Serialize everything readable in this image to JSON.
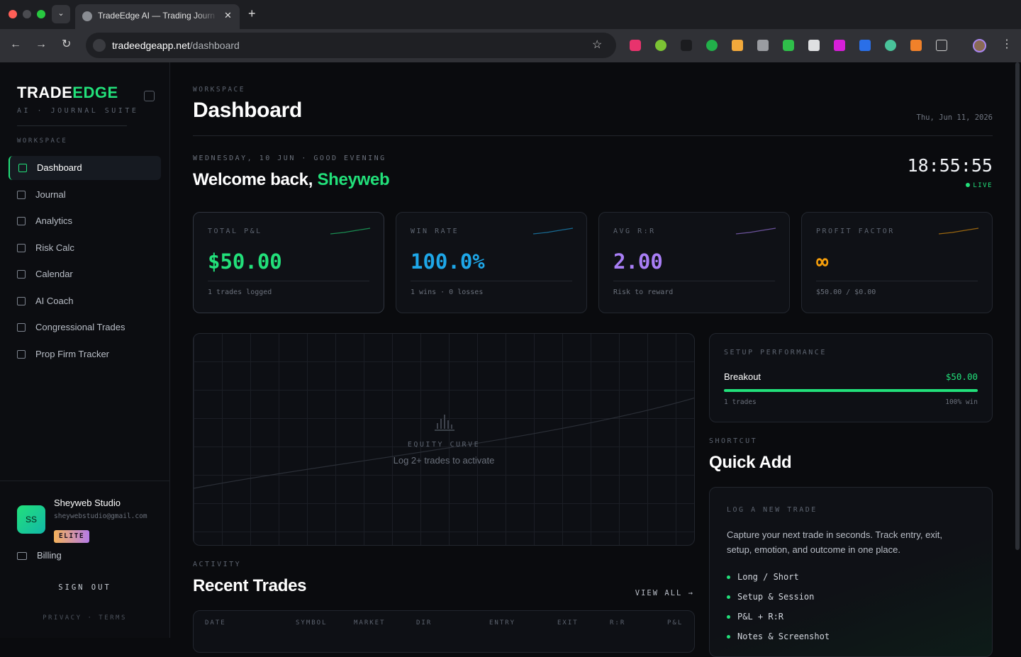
{
  "browser": {
    "tab_title": "TradeEdge AI — Trading Journ",
    "url_host": "tradeedgeapp.net",
    "url_path": "/dashboard"
  },
  "sidebar": {
    "brand_a": "TRADE",
    "brand_b": "EDGE",
    "tagline": "AI · JOURNAL SUITE",
    "section": "WORKSPACE",
    "nav": [
      "Dashboard",
      "Journal",
      "Analytics",
      "Risk Calc",
      "Calendar",
      "AI Coach",
      "Congressional Trades",
      "Prop Firm Tracker"
    ],
    "user": {
      "initials": "SS",
      "name": "Sheyweb Studio",
      "email": "sheywebstudio@gmail.com",
      "badge": "ELITE"
    },
    "billing": "Billing",
    "sign_out": "SIGN OUT",
    "legal": [
      "PRIVACY",
      "·",
      "TERMS"
    ]
  },
  "header": {
    "eyebrow": "WORKSPACE",
    "title": "Dashboard",
    "date": "Thu, Jun 11, 2026"
  },
  "welcome": {
    "eyebrow": "WEDNESDAY, 10 JUN · GOOD EVENING",
    "greeting": "Welcome back,",
    "name": "Sheyweb",
    "clock": "18:55:55",
    "live": "LIVE"
  },
  "stats": [
    {
      "label": "TOTAL P&L",
      "value": "$50.00",
      "note": "1 trades logged",
      "color": "#22e07a"
    },
    {
      "label": "WIN RATE",
      "value": "100.0%",
      "note": "1 wins · 0 losses",
      "color": "#1ea7e8"
    },
    {
      "label": "AVG R:R",
      "value": "2.00",
      "note": "Risk to reward",
      "color": "#a87ef5"
    },
    {
      "label": "PROFIT FACTOR",
      "value": "∞",
      "note": "$50.00 / $0.00",
      "color": "#f59e0b"
    }
  ],
  "equity": {
    "label": "EQUITY CURVE",
    "hint": "Log 2+ trades to activate"
  },
  "setup": {
    "title": "SETUP PERFORMANCE",
    "rows": [
      {
        "name": "Breakout",
        "pnl": "$50.00",
        "trades": "1 trades",
        "win": "100% win"
      }
    ]
  },
  "quick_add": {
    "eyebrow": "SHORTCUT",
    "title": "Quick Add",
    "card_title": "LOG A NEW TRADE",
    "desc": "Capture your next trade in seconds. Track entry, exit, setup, emotion, and outcome in one place.",
    "items": [
      "Long / Short",
      "Setup & Session",
      "P&L + R:R",
      "Notes & Screenshot"
    ]
  },
  "activity": {
    "eyebrow": "ACTIVITY",
    "title": "Recent Trades",
    "view_all": "VIEW ALL →",
    "columns": [
      "DATE",
      "SYMBOL",
      "MARKET",
      "DIR",
      "ENTRY",
      "EXIT",
      "R:R",
      "P&L"
    ]
  }
}
